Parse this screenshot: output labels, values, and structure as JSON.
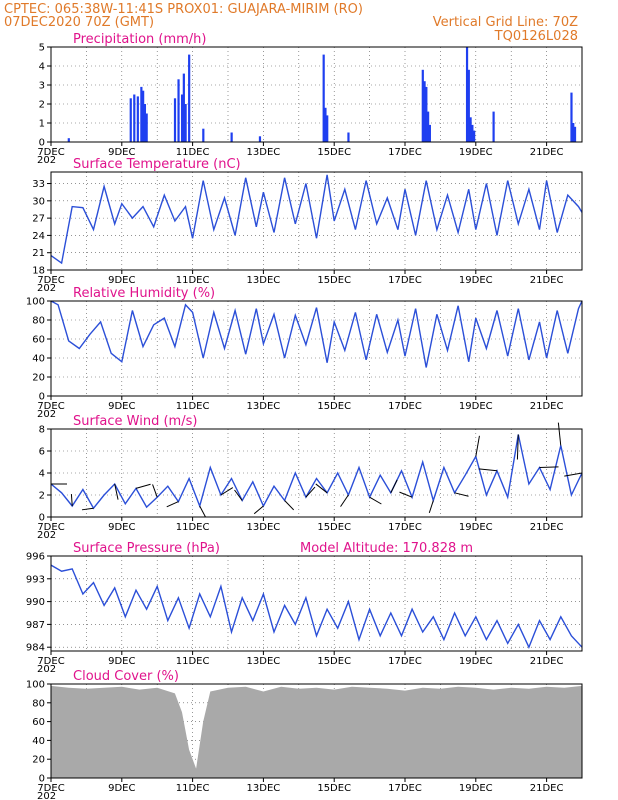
{
  "header": {
    "line1_left": "CPTEC:   065:38W-11:41S   PROX01: GUAJARA-MIRIM (RO)",
    "line2_left": "07DEC2020 70Z (GMT)",
    "line2_right": "Vertical Grid Line: 70Z",
    "line3_right": "TQ0126L028"
  },
  "colors": {
    "header": "#e07a2a",
    "title": "#e0138c",
    "series": "#2b4fd8",
    "bars": "#1f3ff0",
    "cloud": "#a9a9a9",
    "wind_arrow": "#000000"
  },
  "x_axis": {
    "labels": [
      "7DEC",
      "9DEC",
      "11DEC",
      "13DEC",
      "15DEC",
      "17DEC",
      "19DEC",
      "21DEC"
    ],
    "label_day_offsets": [
      0,
      2,
      4,
      6,
      8,
      10,
      12,
      14
    ],
    "day_range": [
      0,
      15
    ],
    "year_fragment": "202"
  },
  "chart_data": [
    {
      "type": "bar",
      "title": "Precipitation (mm/h)",
      "ylim": [
        0,
        5
      ],
      "yticks": [
        0,
        1,
        2,
        3,
        4,
        5
      ],
      "grid": true,
      "x": [
        0.5,
        2.25,
        2.35,
        2.45,
        2.55,
        2.6,
        2.65,
        2.7,
        3.5,
        3.6,
        3.7,
        3.75,
        3.8,
        3.9,
        4.3,
        5.1,
        5.9,
        7.7,
        7.75,
        7.8,
        8.4,
        10.5,
        10.55,
        10.6,
        10.65,
        10.7,
        11.75,
        11.8,
        11.85,
        11.9,
        11.95,
        12.5,
        14.7,
        14.75,
        14.8
      ],
      "values": [
        0.2,
        2.3,
        2.5,
        2.4,
        2.9,
        2.7,
        2.0,
        1.5,
        2.3,
        3.3,
        2.5,
        3.6,
        2.0,
        4.6,
        0.7,
        0.5,
        0.3,
        4.6,
        1.8,
        1.4,
        0.5,
        3.8,
        3.2,
        2.9,
        1.6,
        0.9,
        5.0,
        3.8,
        1.3,
        0.9,
        0.6,
        1.6,
        2.6,
        1.0,
        0.8
      ]
    },
    {
      "type": "line",
      "title": "Surface Temperature (nC)",
      "ylim": [
        18,
        35
      ],
      "yticks": [
        18,
        21,
        24,
        27,
        30,
        33
      ],
      "grid": true,
      "x": [
        0,
        0.3,
        0.6,
        0.9,
        1.2,
        1.5,
        1.8,
        2.0,
        2.3,
        2.6,
        2.9,
        3.2,
        3.5,
        3.8,
        4.0,
        4.3,
        4.6,
        4.9,
        5.2,
        5.5,
        5.8,
        6.0,
        6.3,
        6.6,
        6.9,
        7.2,
        7.5,
        7.8,
        8.0,
        8.3,
        8.6,
        8.9,
        9.2,
        9.5,
        9.8,
        10.0,
        10.3,
        10.6,
        10.9,
        11.2,
        11.5,
        11.8,
        12.0,
        12.3,
        12.6,
        12.9,
        13.2,
        13.5,
        13.8,
        14.0,
        14.3,
        14.6,
        14.9,
        15.0
      ],
      "values": [
        20.5,
        19.2,
        29.0,
        28.8,
        25.0,
        32.5,
        26.0,
        29.5,
        27.0,
        29.0,
        25.5,
        31.0,
        26.5,
        29.0,
        23.5,
        33.5,
        25.0,
        30.5,
        24.0,
        34.0,
        25.5,
        31.5,
        24.5,
        34.0,
        26.0,
        33.0,
        23.5,
        34.5,
        26.5,
        32.0,
        25.0,
        33.5,
        26.0,
        30.5,
        25.0,
        32.0,
        24.0,
        33.5,
        25.0,
        31.0,
        24.5,
        32.0,
        25.0,
        33.0,
        24.0,
        33.5,
        26.0,
        32.0,
        25.0,
        33.5,
        24.5,
        31.0,
        29.0,
        28.0
      ]
    },
    {
      "type": "line",
      "title": "Relative Humidity (%)",
      "ylim": [
        0,
        100
      ],
      "yticks": [
        0,
        20,
        40,
        60,
        80,
        100
      ],
      "grid": true,
      "x": [
        0,
        0.2,
        0.5,
        0.8,
        1.1,
        1.4,
        1.7,
        2.0,
        2.3,
        2.6,
        2.9,
        3.2,
        3.5,
        3.8,
        4.0,
        4.3,
        4.6,
        4.9,
        5.2,
        5.5,
        5.8,
        6.0,
        6.3,
        6.6,
        6.9,
        7.2,
        7.5,
        7.8,
        8.0,
        8.3,
        8.6,
        8.9,
        9.2,
        9.5,
        9.8,
        10.0,
        10.3,
        10.6,
        10.9,
        11.2,
        11.5,
        11.8,
        12.0,
        12.3,
        12.6,
        12.9,
        13.2,
        13.5,
        13.8,
        14.0,
        14.3,
        14.6,
        14.9,
        15.0
      ],
      "values": [
        100,
        96,
        58,
        50,
        65,
        78,
        45,
        36,
        90,
        52,
        75,
        82,
        52,
        96,
        88,
        40,
        88,
        50,
        90,
        44,
        92,
        55,
        86,
        40,
        85,
        54,
        93,
        35,
        78,
        48,
        88,
        38,
        86,
        46,
        80,
        42,
        92,
        30,
        86,
        48,
        95,
        36,
        82,
        50,
        90,
        42,
        92,
        38,
        78,
        40,
        90,
        45,
        92,
        100
      ]
    },
    {
      "type": "line",
      "title": "Surface Wind (m/s)",
      "ylim": [
        0,
        8
      ],
      "yticks": [
        0,
        2,
        4,
        6,
        8
      ],
      "grid": true,
      "x": [
        0,
        0.3,
        0.6,
        0.9,
        1.2,
        1.5,
        1.8,
        2.1,
        2.4,
        2.7,
        3.0,
        3.3,
        3.6,
        3.9,
        4.2,
        4.5,
        4.8,
        5.1,
        5.4,
        5.7,
        6.0,
        6.3,
        6.6,
        6.9,
        7.2,
        7.5,
        7.8,
        8.1,
        8.4,
        8.7,
        9.0,
        9.3,
        9.6,
        9.9,
        10.2,
        10.5,
        10.8,
        11.1,
        11.4,
        11.7,
        12.0,
        12.3,
        12.6,
        12.9,
        13.2,
        13.5,
        13.8,
        14.1,
        14.4,
        14.7,
        15.0
      ],
      "values": [
        3.0,
        2.2,
        1.0,
        2.5,
        0.8,
        2.0,
        3.0,
        1.2,
        2.6,
        0.9,
        1.8,
        2.8,
        1.4,
        3.5,
        1.0,
        4.5,
        2.0,
        3.5,
        1.5,
        3.2,
        1.0,
        2.8,
        1.5,
        4.0,
        1.8,
        3.5,
        2.2,
        4.0,
        2.0,
        4.5,
        1.8,
        3.8,
        2.2,
        4.2,
        1.8,
        5.0,
        1.5,
        4.5,
        2.2,
        3.8,
        5.5,
        2.0,
        4.2,
        1.8,
        7.5,
        3.0,
        4.5,
        2.5,
        6.5,
        2.0,
        4.0
      ]
    },
    {
      "type": "line",
      "title": "Surface Pressure (hPa)",
      "annotation": "Model Altitude: 170.828 m",
      "ylim": [
        983.5,
        996
      ],
      "yticks": [
        984,
        987,
        990,
        993,
        996
      ],
      "grid": true,
      "x": [
        0,
        0.3,
        0.6,
        0.9,
        1.2,
        1.5,
        1.8,
        2.1,
        2.4,
        2.7,
        3.0,
        3.3,
        3.6,
        3.9,
        4.2,
        4.5,
        4.8,
        5.1,
        5.4,
        5.7,
        6.0,
        6.3,
        6.6,
        6.9,
        7.2,
        7.5,
        7.8,
        8.1,
        8.4,
        8.7,
        9.0,
        9.3,
        9.6,
        9.9,
        10.2,
        10.5,
        10.8,
        11.1,
        11.4,
        11.7,
        12.0,
        12.3,
        12.6,
        12.9,
        13.2,
        13.5,
        13.8,
        14.1,
        14.4,
        14.7,
        15.0
      ],
      "values": [
        994.8,
        994.0,
        994.3,
        991.0,
        992.5,
        989.5,
        991.8,
        988.0,
        991.5,
        989.0,
        992.0,
        987.5,
        990.5,
        986.5,
        991.0,
        988.0,
        992.0,
        986.0,
        990.5,
        987.5,
        991.0,
        986.0,
        989.5,
        987.0,
        990.5,
        985.5,
        989.0,
        986.5,
        990.0,
        985.0,
        989.0,
        985.5,
        988.5,
        985.5,
        989.0,
        986.0,
        988.0,
        985.0,
        988.5,
        985.5,
        988.0,
        985.0,
        987.5,
        984.5,
        987.0,
        984.0,
        987.5,
        985.0,
        988.0,
        985.5,
        984.0
      ]
    },
    {
      "type": "area",
      "title": "Cloud Cover (%)",
      "ylim": [
        0,
        100
      ],
      "yticks": [
        0,
        20,
        40,
        60,
        80,
        100
      ],
      "grid": true,
      "x": [
        0,
        0.5,
        1.0,
        1.5,
        2.0,
        2.5,
        3.0,
        3.5,
        3.7,
        3.9,
        4.1,
        4.3,
        4.5,
        5.0,
        5.5,
        6.0,
        6.5,
        7.0,
        7.5,
        8.0,
        8.5,
        9.0,
        9.5,
        10.0,
        10.5,
        11.0,
        11.5,
        12.0,
        12.5,
        13.0,
        13.5,
        14.0,
        14.5,
        15.0
      ],
      "values": [
        98,
        96,
        95,
        96,
        97,
        94,
        96,
        90,
        70,
        30,
        10,
        60,
        92,
        96,
        97,
        92,
        97,
        95,
        96,
        94,
        97,
        96,
        95,
        93,
        96,
        95,
        97,
        96,
        94,
        96,
        95,
        97,
        96,
        98
      ]
    }
  ]
}
